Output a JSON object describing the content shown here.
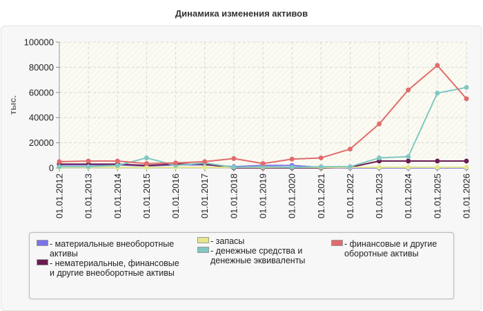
{
  "title": "Динамика изменения активов",
  "chart_data": {
    "type": "line",
    "ylabel": "тыс.",
    "xlabel": "",
    "ylim": [
      0,
      100000
    ],
    "yticks": [
      "100000",
      "80000",
      "60000",
      "40000",
      "20000",
      "0"
    ],
    "categories": [
      "01.01.2012",
      "01.01.2013",
      "01.01.2014",
      "01.01.2015",
      "01.01.2016",
      "01.01.2017",
      "01.01.2018",
      "01.01.2019",
      "01.01.2020",
      "01.01.2021",
      "01.01.2022",
      "01.01.2023",
      "01.01.2024",
      "01.01.2025",
      "01.01.2026"
    ],
    "grid": true,
    "series": [
      {
        "name": "- материальные внеоборотные активы",
        "color": "#7b72e9",
        "values": [
          2500,
          2500,
          2500,
          1500,
          2500,
          2500,
          1000,
          2000,
          2000,
          500,
          0,
          0,
          0,
          0,
          0
        ]
      },
      {
        "name": "- нематериальные, финансовые и другие внеоборотные активы",
        "color": "#6b1a4f",
        "values": [
          3000,
          3000,
          3000,
          2000,
          3000,
          3000,
          0,
          0,
          0,
          0,
          500,
          5500,
          5500,
          5500,
          5500
        ]
      },
      {
        "name": "- запасы",
        "color": "#e6e68c",
        "values": [
          500,
          500,
          500,
          500,
          500,
          500,
          500,
          500,
          500,
          500,
          500,
          500,
          500,
          500,
          500
        ]
      },
      {
        "name": "- денежные средства и денежные эквиваленты",
        "color": "#80c7c2",
        "values": [
          1000,
          1000,
          2000,
          8000,
          2000,
          4000,
          500,
          1000,
          500,
          1000,
          1000,
          8000,
          9000,
          59500,
          64000
        ]
      },
      {
        "name": "- финансовые и другие оборотные активы",
        "color": "#e16b6b",
        "values": [
          5000,
          5500,
          5500,
          3500,
          4000,
          5000,
          7500,
          3500,
          7000,
          8000,
          15000,
          35000,
          62000,
          81500,
          55000
        ]
      }
    ]
  },
  "legend": {
    "items": [
      {
        "label": "- материальные внеоборотные активы",
        "color": "#7b72e9"
      },
      {
        "label": "- нематериальные, финансовые и другие внеоборотные активы",
        "color": "#6b1a4f"
      },
      {
        "label": "- запасы",
        "color": "#e6e68c"
      },
      {
        "label": "- денежные средства и денежные эквиваленты",
        "color": "#80c7c2"
      },
      {
        "label": "- финансовые и другие оборотные активы",
        "color": "#e16b6b"
      }
    ]
  }
}
